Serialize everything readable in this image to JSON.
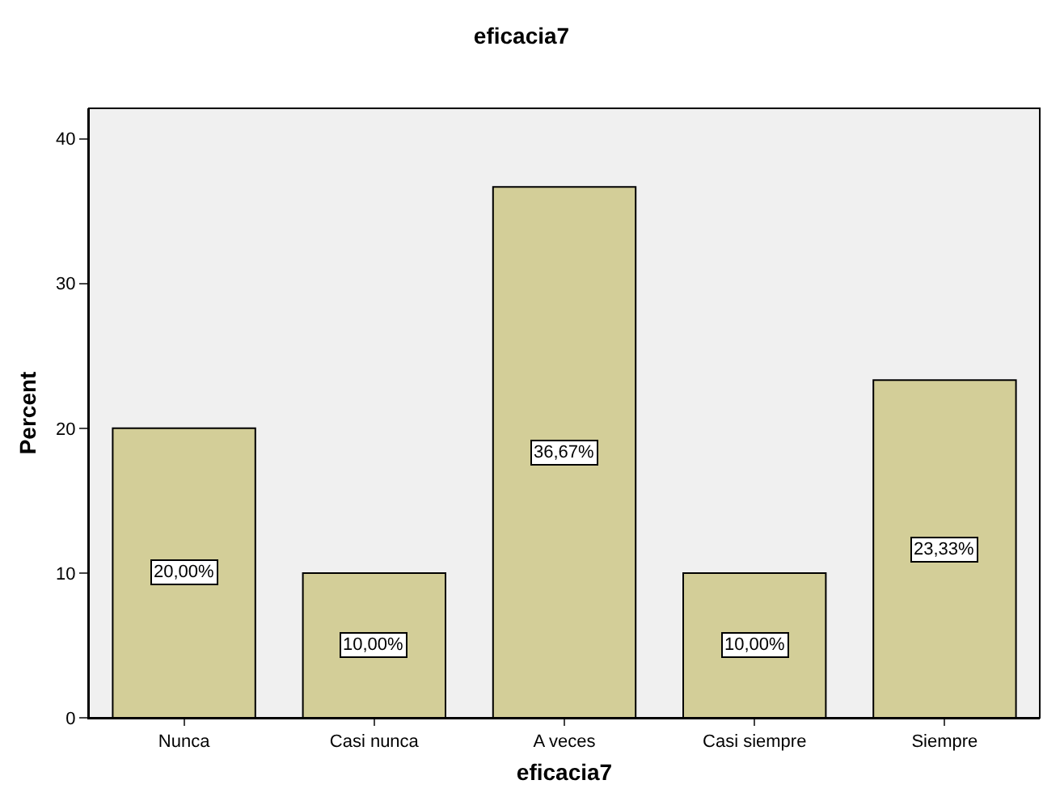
{
  "chart_data": {
    "type": "bar",
    "title": "eficacia7",
    "xlabel": "eficacia7",
    "ylabel": "Percent",
    "categories": [
      "Nunca",
      "Casi nunca",
      "A veces",
      "Casi siempre",
      "Siempre"
    ],
    "values": [
      20,
      10,
      36.67,
      10,
      23.33
    ],
    "value_labels": [
      "20,00%",
      "10,00%",
      "36,67%",
      "10,00%",
      "23,33%"
    ],
    "color": "#d3ce98",
    "ylim": [
      0,
      42.1
    ],
    "yticks": [
      0,
      10,
      20,
      30,
      40
    ],
    "grid": false,
    "legend": false
  }
}
